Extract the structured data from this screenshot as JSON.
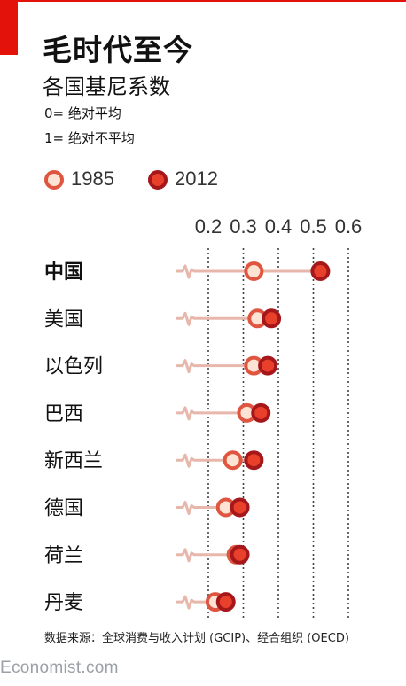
{
  "header": {
    "title": "毛时代至今",
    "subtitle": "各国基尼系数",
    "note_0": "0= 绝对平均",
    "note_1": "1= 绝对不平均"
  },
  "colors": {
    "accent": "#e3120b",
    "c1985_fill": "#fde3d3",
    "c1985_stroke": "#e0553f",
    "c2012_fill": "#e8402a",
    "c2012_stroke": "#a5171a",
    "connector": "#e8b7ac"
  },
  "chart_data": {
    "type": "scatter",
    "xlim": [
      0.2,
      0.6
    ],
    "x_ticks": [
      "0.2",
      "0.3",
      "0.4",
      "0.5",
      "0.6"
    ],
    "legend": {
      "placement": "top-left",
      "entries": [
        "1985",
        "2012"
      ]
    },
    "categories": [
      "中国",
      "美国",
      "以色列",
      "巴西",
      "新西兰",
      "德国",
      "荷兰",
      "丹麦"
    ],
    "series": [
      {
        "name": "1985",
        "values": [
          0.33,
          0.34,
          0.33,
          0.31,
          0.27,
          0.25,
          0.28,
          0.22
        ]
      },
      {
        "name": "2012",
        "values": [
          0.52,
          0.38,
          0.37,
          0.35,
          0.33,
          0.29,
          0.29,
          0.25
        ]
      }
    ]
  },
  "footer": {
    "source": "数据来源：全球消费与收入计划 (GCIP)、经合组织 (OECD)",
    "brand": "Economist.com"
  }
}
